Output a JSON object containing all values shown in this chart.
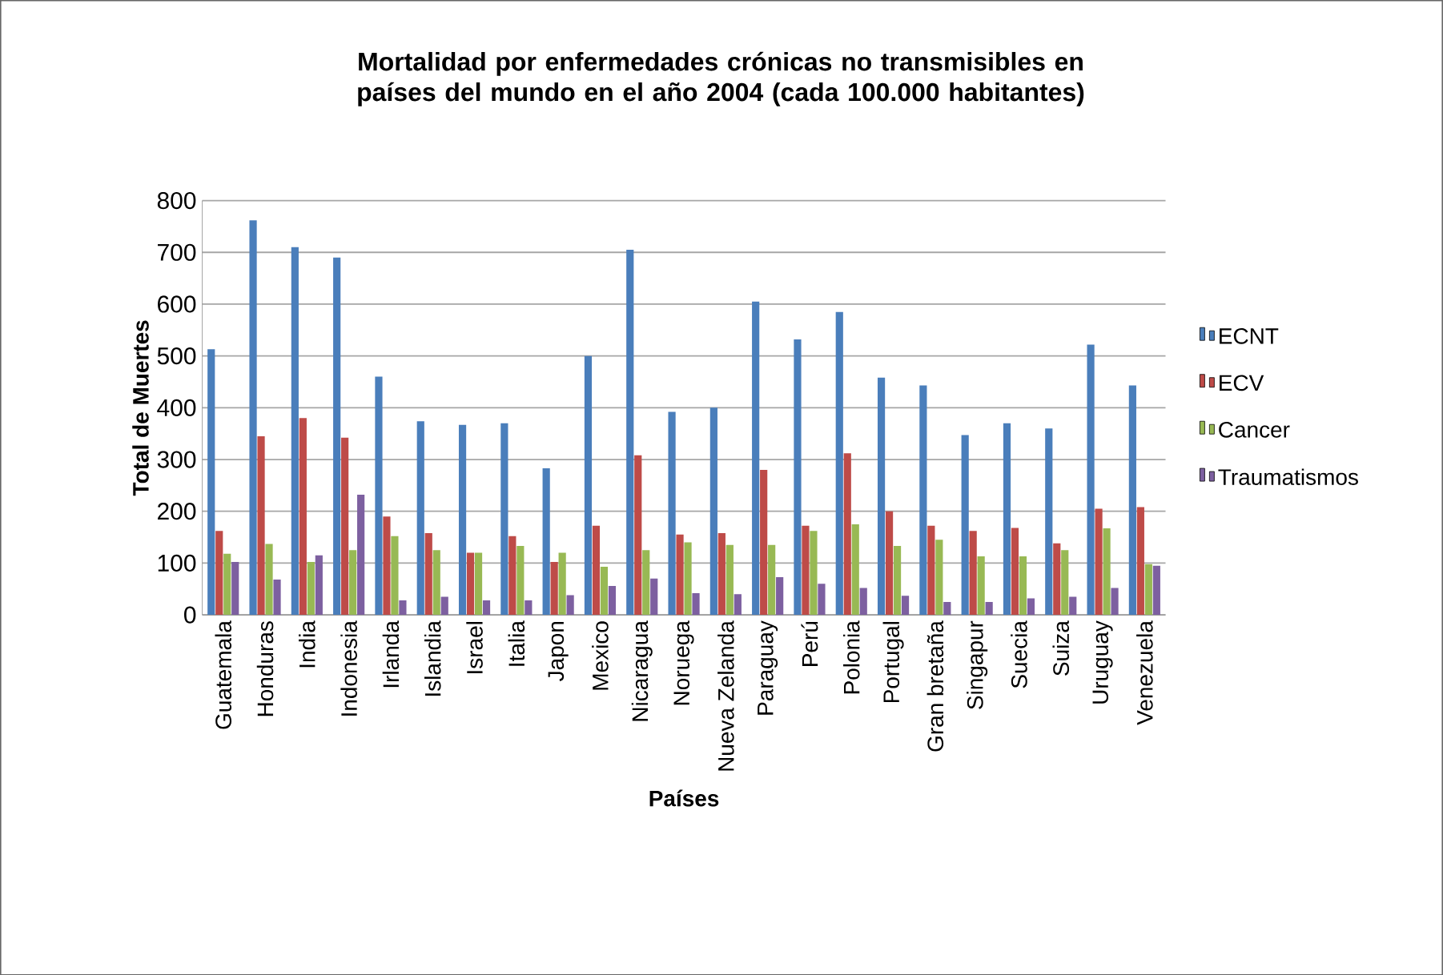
{
  "chart_data": {
    "type": "bar",
    "title": "Mortalidad por enfermedades  crónicas no transmisibles en países del mundo en el año 2004 (cada 100.000 habitantes)",
    "xlabel": "Países",
    "ylabel": "Total de Muertes",
    "categories": [
      "Guatemala",
      "Honduras",
      "India",
      "Indonesia",
      "Irlanda",
      "Islandia",
      "Israel",
      "Italia",
      "Japon",
      "Mexico",
      "Nicaragua",
      "Noruega",
      "Nueva Zelanda",
      "Paraguay",
      "Perú",
      "Polonia",
      "Portugal",
      "Gran bretaña",
      "Singapur",
      "Suecia",
      "Suiza",
      "Uruguay",
      "Venezuela"
    ],
    "series": [
      {
        "name": "ECNT",
        "color": "#4a7ebb",
        "values": [
          513,
          762,
          710,
          690,
          460,
          374,
          367,
          370,
          283,
          500,
          705,
          392,
          400,
          605,
          532,
          585,
          458,
          443,
          347,
          370,
          360,
          522,
          443
        ]
      },
      {
        "name": "ECV",
        "color": "#be4b48",
        "values": [
          162,
          345,
          380,
          342,
          190,
          158,
          120,
          152,
          102,
          172,
          308,
          155,
          158,
          280,
          172,
          312,
          200,
          172,
          162,
          168,
          138,
          205,
          208
        ]
      },
      {
        "name": "Cancer",
        "color": "#98b954",
        "values": [
          118,
          137,
          102,
          125,
          152,
          125,
          120,
          133,
          120,
          93,
          125,
          140,
          135,
          135,
          162,
          175,
          133,
          145,
          113,
          113,
          125,
          167,
          98
        ]
      },
      {
        "name": "Traumatismos",
        "color": "#7d60a0",
        "values": [
          102,
          68,
          115,
          232,
          28,
          35,
          28,
          28,
          38,
          56,
          70,
          42,
          40,
          73,
          60,
          52,
          37,
          25,
          25,
          32,
          35,
          52,
          95
        ]
      }
    ],
    "ylim": [
      0,
      800
    ],
    "yticks": [
      0,
      100,
      200,
      300,
      400,
      500,
      600,
      700,
      800
    ],
    "grid": "y",
    "legend": "right"
  }
}
